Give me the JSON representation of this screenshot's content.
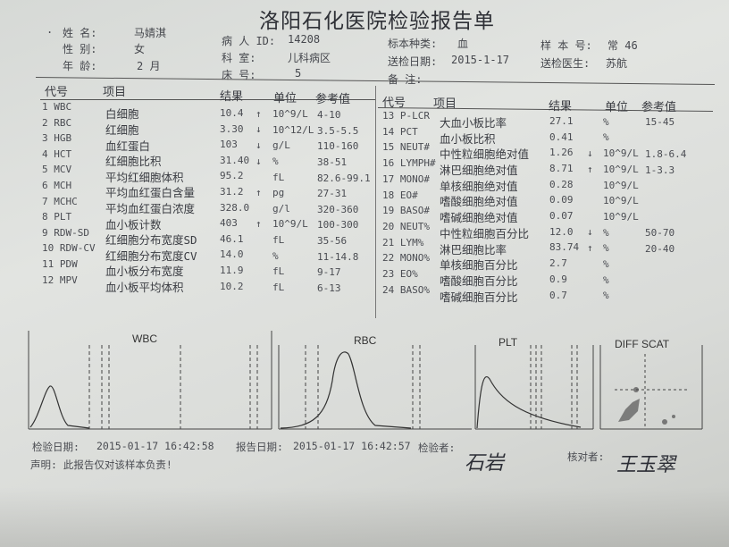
{
  "title": "洛阳石化医院检验报告单",
  "patient": {
    "bullet": ".",
    "name_label": "姓    名:",
    "name": "马婧淇",
    "sex_label": "性    别:",
    "sex": "女",
    "age_label": "年    龄:",
    "age": "2 月",
    "id_label": "病 人 ID:",
    "id": "14208",
    "dept_label": "科    室:",
    "dept": "儿科病区",
    "bed_label": "床    号:",
    "bed": "5",
    "specimen_label": "标本种类:",
    "specimen": "血",
    "sample_no_label": "样 本 号:",
    "sample_no": "常 46",
    "submit_date_label": "送检日期:",
    "submit_date": "2015-1-17",
    "doctor_label": "送检医生:",
    "doctor": "苏航",
    "remark_label": "备    注:"
  },
  "table_headers": {
    "code": "代号",
    "item": "项目",
    "result": "结果",
    "unit": "单位",
    "ref": "参考值"
  },
  "left_rows": [
    {
      "code": "1 WBC",
      "item": "白细胞",
      "result": "10.4",
      "flag": "↑",
      "unit": "10^9/L",
      "ref": "4-10"
    },
    {
      "code": "2 RBC",
      "item": "红细胞",
      "result": "3.30",
      "flag": "↓",
      "unit": "10^12/L",
      "ref": "3.5-5.5"
    },
    {
      "code": "3 HGB",
      "item": "血红蛋白",
      "result": "103",
      "flag": "↓",
      "unit": "g/L",
      "ref": "110-160"
    },
    {
      "code": "4 HCT",
      "item": "红细胞比积",
      "result": "31.40",
      "flag": "↓",
      "unit": "%",
      "ref": "38-51"
    },
    {
      "code": "5 MCV",
      "item": "平均红细胞体积",
      "result": "95.2",
      "flag": "",
      "unit": "fL",
      "ref": "82.6-99.1"
    },
    {
      "code": "6 MCH",
      "item": "平均血红蛋白含量",
      "result": "31.2",
      "flag": "↑",
      "unit": "pg",
      "ref": "27-31"
    },
    {
      "code": "7 MCHC",
      "item": "平均血红蛋白浓度",
      "result": "328.0",
      "flag": "",
      "unit": "g/l",
      "ref": "320-360"
    },
    {
      "code": "8 PLT",
      "item": "血小板计数",
      "result": "403",
      "flag": "↑",
      "unit": "10^9/L",
      "ref": "100-300"
    },
    {
      "code": "9 RDW-SD",
      "item": "红细胞分布宽度SD",
      "result": "46.1",
      "flag": "",
      "unit": "fL",
      "ref": "35-56"
    },
    {
      "code": "10 RDW-CV",
      "item": "红细胞分布宽度CV",
      "result": "14.0",
      "flag": "",
      "unit": "%",
      "ref": "11-14.8"
    },
    {
      "code": "11 PDW",
      "item": "血小板分布宽度",
      "result": "11.9",
      "flag": "",
      "unit": "fL",
      "ref": "9-17"
    },
    {
      "code": "12 MPV",
      "item": "血小板平均体积",
      "result": "10.2",
      "flag": "",
      "unit": "fL",
      "ref": "6-13"
    }
  ],
  "right_rows": [
    {
      "code": "13 P-LCR",
      "item": "大血小板比率",
      "result": "27.1",
      "flag": "",
      "unit": "%",
      "ref": "15-45"
    },
    {
      "code": "14 PCT",
      "item": "血小板比积",
      "result": "0.41",
      "flag": "",
      "unit": "%",
      "ref": ""
    },
    {
      "code": "15 NEUT#",
      "item": "中性粒细胞绝对值",
      "result": "1.26",
      "flag": "↓",
      "unit": "10^9/L",
      "ref": "1.8-6.4"
    },
    {
      "code": "16 LYMPH#",
      "item": "淋巴细胞绝对值",
      "result": "8.71",
      "flag": "↑",
      "unit": "10^9/L",
      "ref": "1-3.3"
    },
    {
      "code": "17 MONO#",
      "item": "单核细胞绝对值",
      "result": "0.28",
      "flag": "",
      "unit": "10^9/L",
      "ref": ""
    },
    {
      "code": "18 EO#",
      "item": "嗜酸细胞绝对值",
      "result": "0.09",
      "flag": "",
      "unit": "10^9/L",
      "ref": ""
    },
    {
      "code": "19 BASO#",
      "item": "嗜碱细胞绝对值",
      "result": "0.07",
      "flag": "",
      "unit": "10^9/L",
      "ref": ""
    },
    {
      "code": "20 NEUT%",
      "item": "中性粒细胞百分比",
      "result": "12.0",
      "flag": "↓",
      "unit": "%",
      "ref": "50-70"
    },
    {
      "code": "21 LYM%",
      "item": "淋巴细胞比率",
      "result": "83.74",
      "flag": "↑",
      "unit": "%",
      "ref": "20-40"
    },
    {
      "code": "22 MONO%",
      "item": "单核细胞百分比",
      "result": "2.7",
      "flag": "",
      "unit": "%",
      "ref": ""
    },
    {
      "code": "23 EO%",
      "item": "嗜酸细胞百分比",
      "result": "0.9",
      "flag": "",
      "unit": "%",
      "ref": ""
    },
    {
      "code": "24 BASO%",
      "item": "嗜碱细胞百分比",
      "result": "0.7",
      "flag": "",
      "unit": "%",
      "ref": ""
    }
  ],
  "charts": {
    "wbc": "WBC",
    "rbc": "RBC",
    "plt": "PLT",
    "diff": "DIFF SCAT"
  },
  "footer": {
    "test_date_label": "检验日期:",
    "test_date": "2015-01-17  16:42:58",
    "report_date_label": "报告日期:",
    "report_date": "2015-01-17  16:42:57",
    "tester_label": "检验者:",
    "tester": "石岩",
    "checker_label": "核对者:",
    "checker": "王玉翠",
    "disclaimer": "声明: 此报告仅对该样本负责!"
  }
}
